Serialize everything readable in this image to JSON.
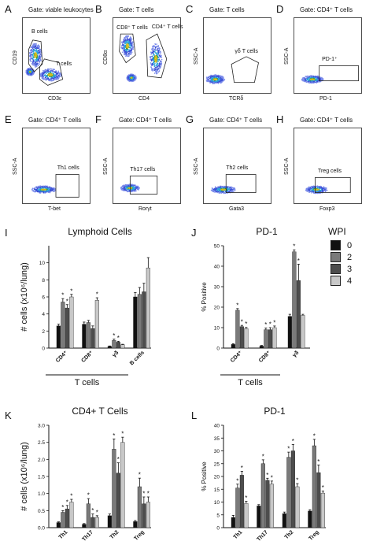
{
  "flow_panels": [
    {
      "id": "A",
      "gate": "Gate: viable leukocytes",
      "ylabel": "CD19",
      "xlabel": "CD3ε",
      "populations": [
        "B cells",
        "T cells"
      ]
    },
    {
      "id": "B",
      "gate": "Gate: T cells",
      "ylabel": "CD8α",
      "xlabel": "CD4",
      "populations": [
        "CD8⁺ T cells",
        "CD4⁺ T cells"
      ]
    },
    {
      "id": "C",
      "gate": "Gate: T cells",
      "ylabel": "SSC-A",
      "xlabel": "TCRδ",
      "populations": [
        "γδ T cells"
      ]
    },
    {
      "id": "D",
      "gate": "Gate: CD4⁺ T cells",
      "ylabel": "SSC-A",
      "xlabel": "PD-1",
      "populations": [
        "PD-1⁺"
      ]
    },
    {
      "id": "E",
      "gate": "Gate: CD4⁺ T cells",
      "ylabel": "SSC-A",
      "xlabel": "T-bet",
      "populations": [
        "Th1 cells"
      ]
    },
    {
      "id": "F",
      "gate": "Gate: CD4⁺ T cells",
      "ylabel": "SSC-A",
      "xlabel": "Rorγt",
      "populations": [
        "Th17 cells"
      ]
    },
    {
      "id": "G",
      "gate": "Gate: CD4⁺ T cells",
      "ylabel": "SSC-A",
      "xlabel": "Gata3",
      "populations": [
        "Th2 cells"
      ]
    },
    {
      "id": "H",
      "gate": "Gate: CD4⁺ T cells",
      "ylabel": "SSC-A",
      "xlabel": "Foxp3",
      "populations": [
        "Treg cells"
      ]
    }
  ],
  "legend": {
    "title": "WPI",
    "items": [
      {
        "label": "0",
        "color": "#111111"
      },
      {
        "label": "2",
        "color": "#7a7a7a"
      },
      {
        "label": "3",
        "color": "#4d4d4d"
      },
      {
        "label": "4",
        "color": "#c8c8c8"
      }
    ]
  },
  "chart_data": [
    {
      "id": "I",
      "type": "bar",
      "title": "Lymphoid Cells",
      "ylabel": "# cells (x10⁶/lung)",
      "categories": [
        "CD4⁺",
        "CD8⁺",
        "γδ",
        "B cells"
      ],
      "group_label": "T cells",
      "group_span": [
        0,
        2
      ],
      "ylim": [
        0,
        12
      ],
      "yticks": [
        0,
        2,
        4,
        6,
        8,
        10
      ],
      "series": [
        {
          "name": "0",
          "values": [
            2.6,
            2.8,
            0.2,
            6.0
          ],
          "errors": [
            0.2,
            0.25,
            0.05,
            0.5
          ]
        },
        {
          "name": "2",
          "values": [
            5.4,
            3.0,
            0.9,
            6.3
          ],
          "errors": [
            0.4,
            0.25,
            0.15,
            0.8
          ]
        },
        {
          "name": "3",
          "values": [
            4.7,
            2.3,
            0.7,
            6.6
          ],
          "errors": [
            0.4,
            0.3,
            0.1,
            1.0
          ]
        },
        {
          "name": "4",
          "values": [
            6.0,
            5.6,
            0.4,
            9.4
          ],
          "errors": [
            0.3,
            0.3,
            0.05,
            1.2
          ]
        }
      ],
      "significant": [
        [
          false,
          true,
          true,
          true
        ],
        [
          false,
          false,
          false,
          true
        ],
        [
          false,
          true,
          true,
          false
        ],
        [
          false,
          false,
          false,
          false
        ]
      ]
    },
    {
      "id": "J",
      "type": "bar",
      "title": "PD-1",
      "ylabel": "% Positive",
      "categories": [
        "CD4⁺",
        "CD8⁺",
        "γδ"
      ],
      "group_label": "T cells",
      "group_span": [
        0,
        1
      ],
      "ylim": [
        0,
        50
      ],
      "yticks": [
        0,
        10,
        20,
        30,
        40,
        50
      ],
      "series": [
        {
          "name": "0",
          "values": [
            1.8,
            1.0,
            15.5
          ],
          "errors": [
            0.3,
            0.3,
            1.0
          ]
        },
        {
          "name": "2",
          "values": [
            18.5,
            9.0,
            47.0
          ],
          "errors": [
            0.8,
            0.8,
            1.0
          ]
        },
        {
          "name": "3",
          "values": [
            10.5,
            9.0,
            33.0
          ],
          "errors": [
            0.6,
            1.0,
            8.0
          ]
        },
        {
          "name": "4",
          "values": [
            9.5,
            10.0,
            16.0
          ],
          "errors": [
            0.6,
            0.8,
            0.5
          ]
        }
      ],
      "significant": [
        [
          false,
          true,
          true,
          true
        ],
        [
          false,
          true,
          true,
          true
        ],
        [
          false,
          true,
          true,
          false
        ]
      ]
    },
    {
      "id": "K",
      "type": "bar",
      "title": "CD4+ T Cells",
      "ylabel": "# cells (x10⁶/lung)",
      "categories": [
        "Th1",
        "Th17",
        "Th2",
        "Treg"
      ],
      "ylim": [
        0,
        3
      ],
      "yticks": [
        0.0,
        0.5,
        1.0,
        1.5,
        2.0,
        2.5,
        3.0
      ],
      "series": [
        {
          "name": "0",
          "values": [
            0.15,
            0.1,
            0.35,
            0.18
          ],
          "errors": [
            0.02,
            0.02,
            0.05,
            0.03
          ]
        },
        {
          "name": "2",
          "values": [
            0.45,
            0.7,
            2.3,
            1.2
          ],
          "errors": [
            0.05,
            0.15,
            0.3,
            0.25
          ]
        },
        {
          "name": "3",
          "values": [
            0.55,
            0.3,
            1.6,
            0.7
          ],
          "errors": [
            0.1,
            0.1,
            0.3,
            0.2
          ]
        },
        {
          "name": "4",
          "values": [
            0.75,
            0.3,
            2.5,
            0.75
          ],
          "errors": [
            0.08,
            0.05,
            0.15,
            0.15
          ]
        }
      ],
      "significant": [
        [
          false,
          true,
          true,
          true
        ],
        [
          false,
          true,
          true,
          true
        ],
        [
          false,
          true,
          true,
          true
        ],
        [
          false,
          true,
          true,
          true
        ]
      ]
    },
    {
      "id": "L",
      "type": "bar",
      "title": "PD-1",
      "ylabel": "% Positive",
      "categories": [
        "Th1",
        "Th17",
        "Th2",
        "Treg"
      ],
      "ylim": [
        0,
        40
      ],
      "yticks": [
        0,
        5,
        10,
        15,
        20,
        25,
        30,
        35,
        40
      ],
      "series": [
        {
          "name": "0",
          "values": [
            4.0,
            8.5,
            5.5,
            6.5
          ],
          "errors": [
            0.8,
            0.5,
            0.6,
            0.5
          ]
        },
        {
          "name": "2",
          "values": [
            15.5,
            25.0,
            27.5,
            32.0
          ],
          "errors": [
            1.5,
            1.5,
            2.0,
            2.5
          ]
        },
        {
          "name": "3",
          "values": [
            20.5,
            18.5,
            30.0,
            21.5
          ],
          "errors": [
            1.5,
            0.8,
            2.5,
            3.0
          ]
        },
        {
          "name": "4",
          "values": [
            9.5,
            17.0,
            16.0,
            13.5
          ],
          "errors": [
            0.8,
            1.2,
            1.2,
            0.8
          ]
        }
      ],
      "significant": [
        [
          false,
          true,
          true,
          true
        ],
        [
          false,
          true,
          true,
          true
        ],
        [
          false,
          true,
          true,
          true
        ],
        [
          false,
          true,
          true,
          true
        ]
      ]
    }
  ]
}
